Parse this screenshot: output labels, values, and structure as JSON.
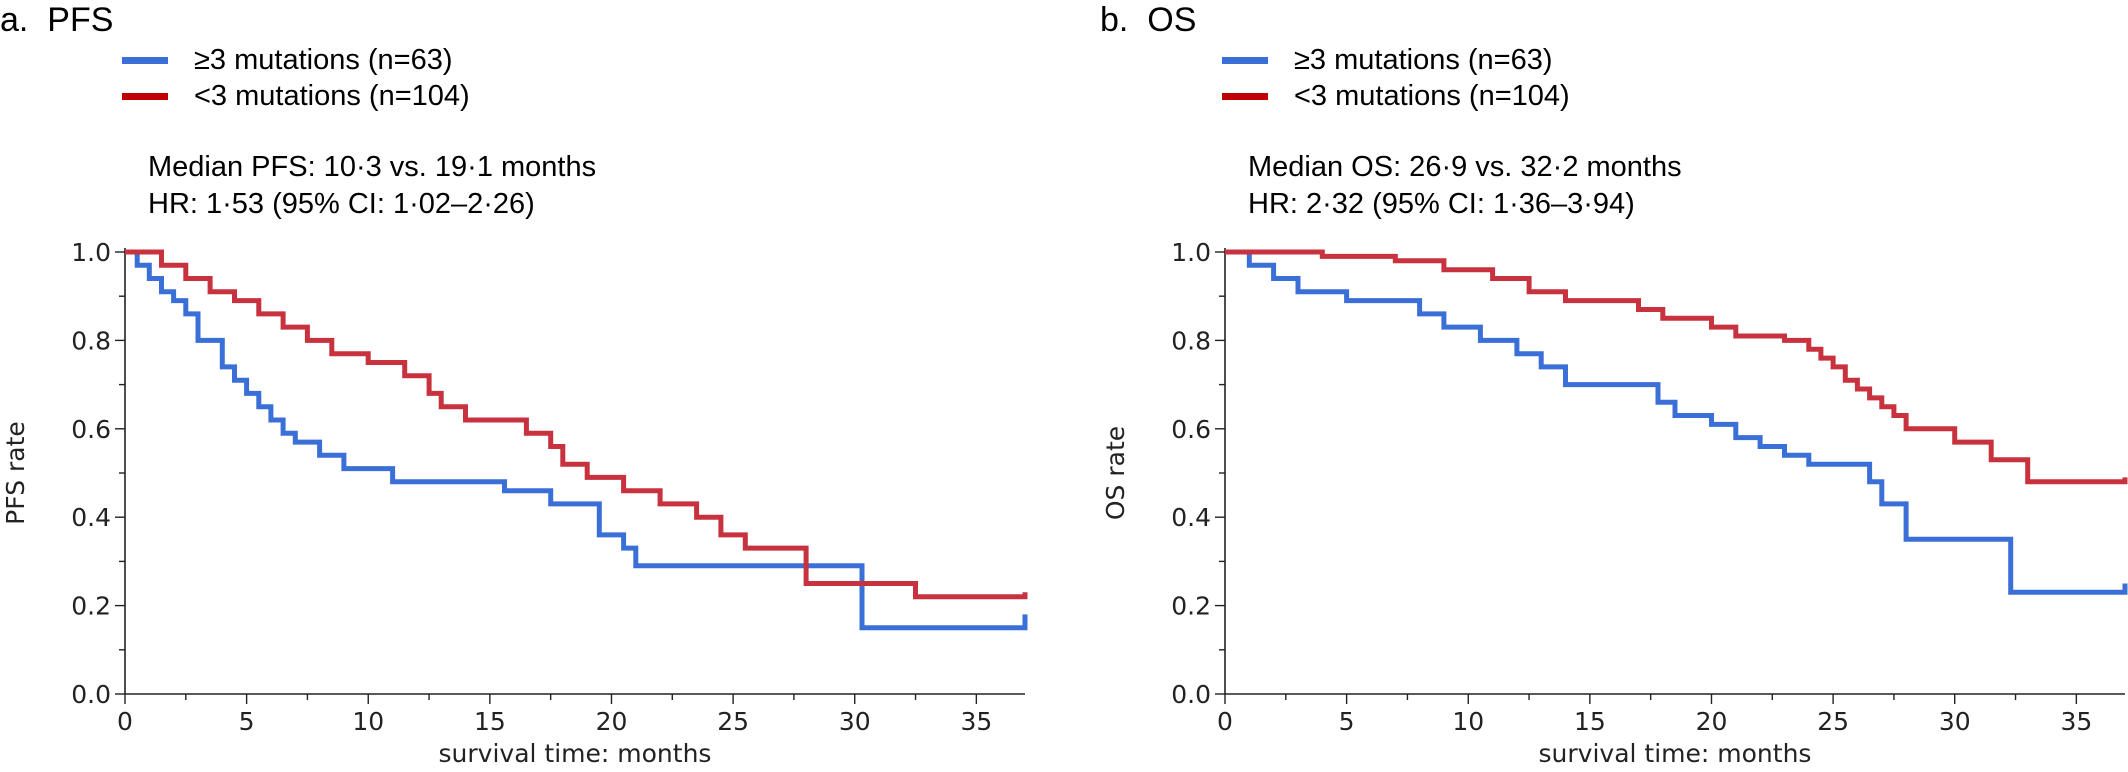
{
  "chart_data": [
    {
      "type": "line",
      "panel_label": "a.",
      "title": "PFS",
      "stats": [
        "Median PFS: 10·3 vs. 19·1 months",
        "HR: 1·53 (95% CI: 1·02–2·26)"
      ],
      "xlabel": "survival time: months",
      "ylabel": "PFS rate",
      "xlim": [
        0,
        37
      ],
      "ylim": [
        0,
        1
      ],
      "x_ticks": [
        "0",
        "5",
        "10",
        "15",
        "20",
        "25",
        "30",
        "35"
      ],
      "y_ticks": [
        "0.0",
        "0.2",
        "0.4",
        "0.6",
        "0.8",
        "1.0"
      ],
      "legend_position": "top-left",
      "grid": false,
      "series": [
        {
          "name": "≥3 mutations (n=63)",
          "color": "#3b6fd8",
          "step": true,
          "x": [
            0,
            0.5,
            1,
            1.5,
            2,
            2.5,
            3,
            4,
            4.5,
            5,
            5.5,
            6,
            6.5,
            7,
            8,
            9,
            11,
            15.6,
            17.5,
            19.5,
            20.5,
            21,
            30.3,
            37
          ],
          "y": [
            1.0,
            0.97,
            0.94,
            0.91,
            0.89,
            0.86,
            0.8,
            0.74,
            0.71,
            0.68,
            0.65,
            0.62,
            0.59,
            0.57,
            0.54,
            0.51,
            0.48,
            0.46,
            0.43,
            0.36,
            0.33,
            0.29,
            0.15,
            0.18
          ]
        },
        {
          "name": "<3 mutations (n=104)",
          "color": "#c8323f",
          "step": true,
          "x": [
            0,
            1.5,
            2.5,
            3.5,
            4.5,
            5.5,
            6.5,
            7.5,
            8.5,
            10,
            11.5,
            12.5,
            13,
            14,
            16.5,
            17.5,
            18,
            19,
            20.5,
            22,
            23.5,
            24.5,
            25.5,
            28,
            32.5,
            37
          ],
          "y": [
            1.0,
            0.97,
            0.94,
            0.91,
            0.89,
            0.86,
            0.83,
            0.8,
            0.77,
            0.75,
            0.72,
            0.68,
            0.65,
            0.62,
            0.59,
            0.56,
            0.52,
            0.49,
            0.46,
            0.43,
            0.4,
            0.36,
            0.33,
            0.25,
            0.22,
            0.23
          ]
        }
      ]
    },
    {
      "type": "line",
      "panel_label": "b.",
      "title": "OS",
      "stats": [
        "Median OS: 26·9 vs. 32·2 months",
        "HR: 2·32 (95% CI: 1·36–3·94)"
      ],
      "xlabel": "survival time: months",
      "ylabel": "OS rate",
      "xlim": [
        0,
        37
      ],
      "ylim": [
        0,
        1
      ],
      "x_ticks": [
        "0",
        "5",
        "10",
        "15",
        "20",
        "25",
        "30",
        "35"
      ],
      "y_ticks": [
        "0.0",
        "0.2",
        "0.4",
        "0.6",
        "0.8",
        "1.0"
      ],
      "legend_position": "top-left",
      "grid": false,
      "series": [
        {
          "name": "≥3 mutations (n=63)",
          "color": "#3b6fd8",
          "step": true,
          "x": [
            0,
            1,
            2,
            3,
            5,
            8,
            9,
            10.5,
            12,
            13,
            14,
            17.8,
            18.5,
            20,
            21,
            22,
            23,
            24,
            26.5,
            27,
            28,
            32.3,
            37
          ],
          "y": [
            1.0,
            0.97,
            0.94,
            0.91,
            0.89,
            0.86,
            0.83,
            0.8,
            0.77,
            0.74,
            0.7,
            0.66,
            0.63,
            0.61,
            0.58,
            0.56,
            0.54,
            0.52,
            0.48,
            0.43,
            0.35,
            0.23,
            0.25
          ]
        },
        {
          "name": "<3 mutations (n=104)",
          "color": "#c8323f",
          "step": true,
          "x": [
            0,
            4,
            7,
            9,
            11,
            12.5,
            14,
            17,
            18,
            20,
            21,
            23,
            24,
            24.5,
            25,
            25.5,
            26,
            26.5,
            27,
            27.5,
            28,
            30,
            31.5,
            33,
            37
          ],
          "y": [
            1.0,
            0.99,
            0.98,
            0.96,
            0.94,
            0.91,
            0.89,
            0.87,
            0.85,
            0.83,
            0.81,
            0.8,
            0.78,
            0.76,
            0.74,
            0.71,
            0.69,
            0.67,
            0.65,
            0.63,
            0.6,
            0.57,
            0.53,
            0.48,
            0.49
          ]
        }
      ]
    }
  ]
}
